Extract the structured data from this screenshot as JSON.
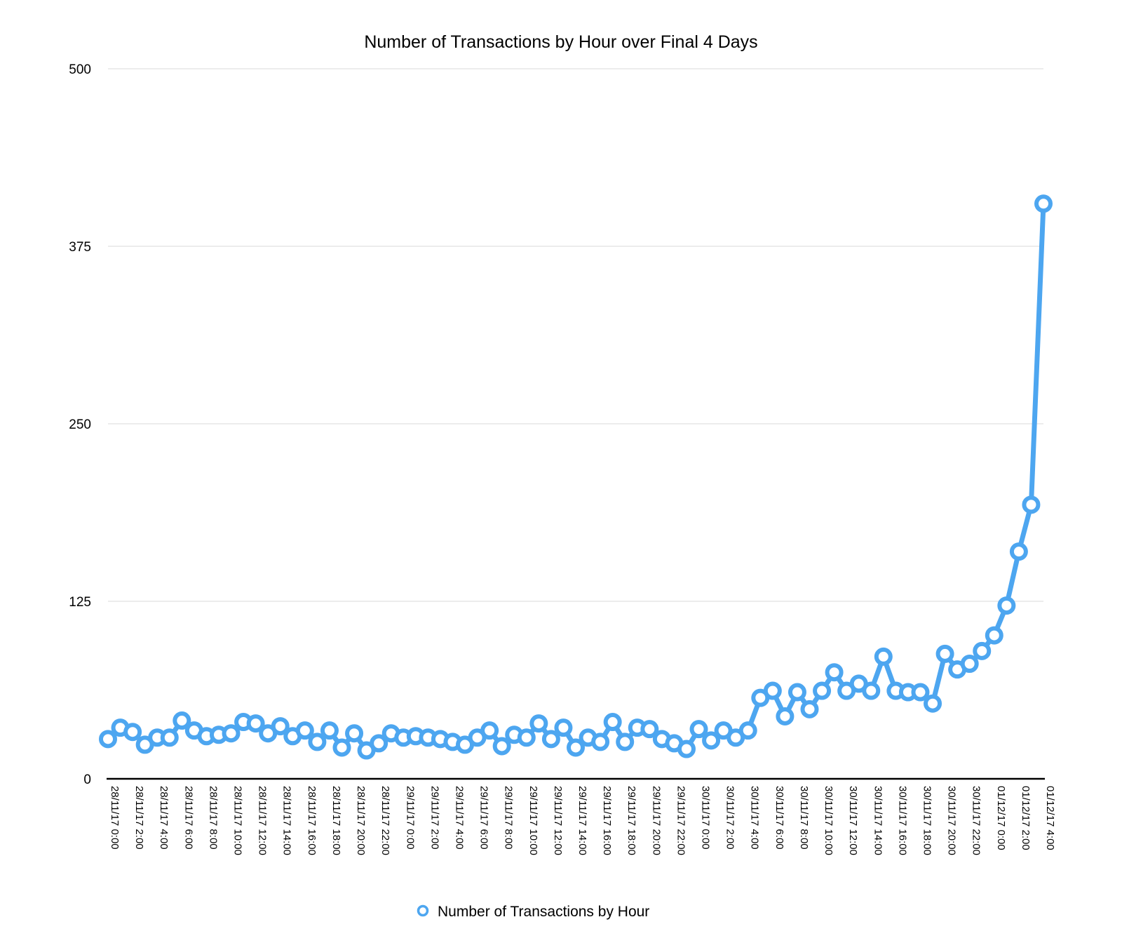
{
  "chart_data": {
    "type": "line",
    "title": "Number of Transactions by Hour over Final 4 Days",
    "xlabel": "",
    "ylabel": "",
    "ylim": [
      0,
      500
    ],
    "yticks": [
      "0",
      "125",
      "250",
      "375",
      "500"
    ],
    "grid": true,
    "legend_position": "bottom-center",
    "accent_color": "#4da6f0",
    "categories": [
      "28/11/17 0:00",
      "28/11/17 1:00",
      "28/11/17 2:00",
      "28/11/17 3:00",
      "28/11/17 4:00",
      "28/11/17 5:00",
      "28/11/17 6:00",
      "28/11/17 7:00",
      "28/11/17 8:00",
      "28/11/17 9:00",
      "28/11/17 10:00",
      "28/11/17 11:00",
      "28/11/17 12:00",
      "28/11/17 13:00",
      "28/11/17 14:00",
      "28/11/17 15:00",
      "28/11/17 16:00",
      "28/11/17 17:00",
      "28/11/17 18:00",
      "28/11/17 19:00",
      "28/11/17 20:00",
      "28/11/17 21:00",
      "28/11/17 22:00",
      "28/11/17 23:00",
      "29/11/17 0:00",
      "29/11/17 1:00",
      "29/11/17 2:00",
      "29/11/17 3:00",
      "29/11/17 4:00",
      "29/11/17 5:00",
      "29/11/17 6:00",
      "29/11/17 7:00",
      "29/11/17 8:00",
      "29/11/17 9:00",
      "29/11/17 10:00",
      "29/11/17 11:00",
      "29/11/17 12:00",
      "29/11/17 13:00",
      "29/11/17 14:00",
      "29/11/17 15:00",
      "29/11/17 16:00",
      "29/11/17 17:00",
      "29/11/17 18:00",
      "29/11/17 19:00",
      "29/11/17 20:00",
      "29/11/17 21:00",
      "29/11/17 22:00",
      "29/11/17 23:00",
      "30/11/17 0:00",
      "30/11/17 1:00",
      "30/11/17 2:00",
      "30/11/17 3:00",
      "30/11/17 4:00",
      "30/11/17 5:00",
      "30/11/17 6:00",
      "30/11/17 7:00",
      "30/11/17 8:00",
      "30/11/17 9:00",
      "30/11/17 10:00",
      "30/11/17 11:00",
      "30/11/17 12:00",
      "30/11/17 13:00",
      "30/11/17 14:00",
      "30/11/17 15:00",
      "30/11/17 16:00",
      "30/11/17 17:00",
      "30/11/17 18:00",
      "30/11/17 19:00",
      "30/11/17 20:00",
      "30/11/17 21:00",
      "30/11/17 22:00",
      "30/11/17 23:00",
      "01/12/17 0:00",
      "01/12/17 1:00",
      "01/12/17 2:00",
      "01/12/17 3:00",
      "01/12/17 4:00"
    ],
    "x_tick_labels": [
      "28/11/17 0:00",
      "28/11/17 2:00",
      "28/11/17 4:00",
      "28/11/17 6:00",
      "28/11/17 8:00",
      "28/11/17 10:00",
      "28/11/17 12:00",
      "28/11/17 14:00",
      "28/11/17 16:00",
      "28/11/17 18:00",
      "28/11/17 20:00",
      "28/11/17 22:00",
      "29/11/17 0:00",
      "29/11/17 2:00",
      "29/11/17 4:00",
      "29/11/17 6:00",
      "29/11/17 8:00",
      "29/11/17 10:00",
      "29/11/17 12:00",
      "29/11/17 14:00",
      "29/11/17 16:00",
      "29/11/17 18:00",
      "29/11/17 20:00",
      "29/11/17 22:00",
      "30/11/17 0:00",
      "30/11/17 2:00",
      "30/11/17 4:00",
      "30/11/17 6:00",
      "30/11/17 8:00",
      "30/11/17 10:00",
      "30/11/17 12:00",
      "30/11/17 14:00",
      "30/11/17 16:00",
      "30/11/17 18:00",
      "30/11/17 20:00",
      "30/11/17 22:00",
      "01/12/17 0:00",
      "01/12/17 2:00",
      "01/12/17 4:00"
    ],
    "series": [
      {
        "name": "Number of Transactions by Hour",
        "color": "#4da6f0",
        "values": [
          28,
          36,
          33,
          24,
          29,
          29,
          41,
          34,
          30,
          31,
          32,
          40,
          39,
          32,
          37,
          30,
          34,
          26,
          34,
          22,
          32,
          20,
          25,
          32,
          29,
          30,
          29,
          28,
          26,
          24,
          29,
          34,
          23,
          31,
          29,
          39,
          28,
          36,
          22,
          29,
          26,
          40,
          26,
          36,
          35,
          28,
          25,
          21,
          35,
          27,
          34,
          29,
          34,
          57,
          62,
          44,
          61,
          49,
          62,
          75,
          62,
          67,
          62,
          86,
          62,
          61,
          61,
          53,
          88,
          77,
          81,
          90,
          101,
          122,
          160,
          193,
          405
        ]
      }
    ]
  }
}
